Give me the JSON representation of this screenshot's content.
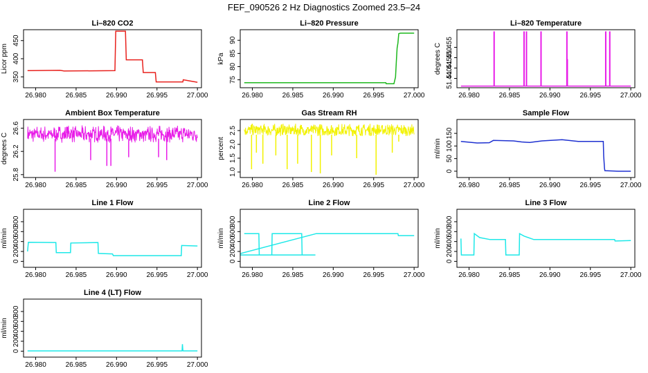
{
  "figure": {
    "title": "FEF_090526  2 Hz Diagnostics Zoomed 23.5–24"
  },
  "chart_data": [
    {
      "type": "line",
      "title": "Li–820 CO2",
      "ylabel": "Licor ppm",
      "xlim": [
        26.9785,
        27.0005
      ],
      "ylim": [
        320,
        480
      ],
      "xticks": [
        "26.980",
        "26.985",
        "26.990",
        "26.995",
        "27.000"
      ],
      "xtick_values": [
        26.98,
        26.985,
        26.99,
        26.995,
        27.0
      ],
      "yticks": [
        "350",
        "400",
        "450"
      ],
      "ytick_values": [
        350,
        400,
        450
      ],
      "color": "#e8201c",
      "series": [
        {
          "x": [
            26.979,
            26.983,
            26.9835,
            26.9898,
            26.9899,
            26.9911,
            26.9912,
            26.9932,
            26.9933,
            26.9948,
            26.9949,
            26.9982,
            26.99825,
            27.0
          ],
          "y": [
            367,
            368,
            366,
            367,
            476,
            476,
            397,
            397,
            362,
            362,
            336,
            336,
            342,
            335
          ]
        }
      ]
    },
    {
      "type": "line",
      "title": "Li–820 Pressure",
      "ylabel": "kPa",
      "xlim": [
        26.9785,
        27.0005
      ],
      "ylim": [
        72,
        94
      ],
      "xticks": [
        "26.980",
        "26.985",
        "26.990",
        "26.995",
        "27.000"
      ],
      "xtick_values": [
        26.98,
        26.985,
        26.99,
        26.995,
        27.0
      ],
      "yticks": [
        "75",
        "80",
        "85",
        "90"
      ],
      "ytick_values": [
        75,
        80,
        85,
        90
      ],
      "color": "#1cb71c",
      "series": [
        {
          "x": [
            26.979,
            26.9965,
            26.99655,
            26.9975,
            26.9977,
            26.9978,
            26.9979,
            26.998,
            26.9981,
            26.9983,
            27.0
          ],
          "y": [
            73.9,
            73.9,
            73.5,
            73.5,
            76,
            82,
            87,
            89,
            92.5,
            92.7,
            92.7
          ]
        }
      ]
    },
    {
      "type": "line",
      "title": "Li–820 Temperature",
      "ylabel": "degrees C",
      "xlim": [
        26.9785,
        27.0005
      ],
      "ylim": [
        51.4355,
        51.4635
      ],
      "xticks": [
        "26.980",
        "26.985",
        "26.990",
        "26.995",
        "27.000"
      ],
      "xtick_values": [
        26.98,
        26.985,
        26.99,
        26.995,
        27.0
      ],
      "yticks": [
        "51.440",
        "51.445",
        "51.450",
        "51.455"
      ],
      "ytick_values": [
        51.44,
        51.445,
        51.45,
        51.455
      ],
      "color": "#e81ce8",
      "baseline": 51.4363,
      "spikes": [
        {
          "x": 26.9831,
          "y": 51.4627
        },
        {
          "x": 26.9868,
          "y": 51.4627
        },
        {
          "x": 26.9871,
          "y": 51.4627
        },
        {
          "x": 26.9889,
          "y": 51.4627
        },
        {
          "x": 26.9921,
          "y": 51.4627
        },
        {
          "x": 26.99215,
          "y": 51.4493
        },
        {
          "x": 26.9969,
          "y": 51.4627
        },
        {
          "x": 26.9974,
          "y": 51.4627
        }
      ]
    },
    {
      "type": "line",
      "title": "Ambient Box Temperature",
      "ylabel": "degrees C",
      "xlim": [
        26.9785,
        27.0005
      ],
      "ylim": [
        25.75,
        26.75
      ],
      "xticks": [
        "26.980",
        "26.985",
        "26.990",
        "26.995",
        "27.000"
      ],
      "xtick_values": [
        26.98,
        26.985,
        26.99,
        26.995,
        27.0
      ],
      "yticks": [
        "25.8",
        "26.2",
        "26.6"
      ],
      "ytick_values": [
        25.8,
        26.2,
        26.6
      ],
      "color": "#e81ce8",
      "noise": {
        "x0": 26.979,
        "x1": 27.0,
        "low": 26.35,
        "high": 26.65,
        "band": [
          26.42,
          26.57
        ],
        "dips": [
          {
            "x": 26.9824,
            "y": 25.85
          },
          {
            "x": 26.9868,
            "y": 26.05
          },
          {
            "x": 26.9888,
            "y": 25.95
          },
          {
            "x": 26.9893,
            "y": 25.95
          },
          {
            "x": 26.9915,
            "y": 26.1
          },
          {
            "x": 26.9952,
            "y": 26.1
          },
          {
            "x": 26.9962,
            "y": 26.05
          }
        ]
      }
    },
    {
      "type": "line",
      "title": "Gas Stream RH",
      "ylabel": "percent",
      "xlim": [
        26.9785,
        27.0005
      ],
      "ylim": [
        0.8,
        2.9
      ],
      "xticks": [
        "26.980",
        "26.985",
        "26.990",
        "26.995",
        "27.000"
      ],
      "xtick_values": [
        26.98,
        26.985,
        26.99,
        26.995,
        27.0
      ],
      "yticks": [
        "1.0",
        "1.5",
        "2.0",
        "2.5"
      ],
      "ytick_values": [
        1.0,
        1.5,
        2.0,
        2.5
      ],
      "color": "#f2f200",
      "noise": {
        "x0": 26.979,
        "x1": 27.0,
        "low": 2.3,
        "high": 2.75,
        "band": [
          2.35,
          2.65
        ],
        "dips": [
          {
            "x": 26.9799,
            "y": 1.1
          },
          {
            "x": 26.9805,
            "y": 1.7
          },
          {
            "x": 26.9813,
            "y": 1.3
          },
          {
            "x": 26.9829,
            "y": 1.6
          },
          {
            "x": 26.9843,
            "y": 1.1
          },
          {
            "x": 26.9856,
            "y": 1.3
          },
          {
            "x": 26.9873,
            "y": 1.0
          },
          {
            "x": 26.9884,
            "y": 0.95
          },
          {
            "x": 26.9898,
            "y": 1.6
          },
          {
            "x": 26.9929,
            "y": 1.5
          },
          {
            "x": 26.9953,
            "y": 0.9
          },
          {
            "x": 26.9973,
            "y": 1.7
          },
          {
            "x": 26.9981,
            "y": 2.1
          }
        ]
      }
    },
    {
      "type": "line",
      "title": "Sample Flow",
      "ylabel": "ml/min",
      "xlim": [
        26.9785,
        27.0005
      ],
      "ylim": [
        -25,
        205
      ],
      "xticks": [
        "26.980",
        "26.985",
        "26.990",
        "26.995",
        "27.000"
      ],
      "xtick_values": [
        26.98,
        26.985,
        26.99,
        26.995,
        27.0
      ],
      "yticks": [
        "0",
        "50",
        "100",
        "150"
      ],
      "ytick_values": [
        0,
        50,
        100,
        150
      ],
      "color": "#1c2fd0",
      "series": [
        {
          "x": [
            26.979,
            26.981,
            26.9825,
            26.983,
            26.9855,
            26.9865,
            26.9875,
            26.989,
            26.9915,
            26.9935,
            26.9966,
            26.99665,
            26.99675,
            26.9968,
            26.9985,
            27.0
          ],
          "y": [
            118,
            112,
            113,
            122,
            120,
            116,
            114,
            120,
            125,
            118,
            118,
            60,
            10,
            2,
            0,
            0
          ]
        }
      ]
    },
    {
      "type": "line",
      "title": "Line 1 Flow",
      "ylabel": "ml/min",
      "xlim": [
        26.9785,
        27.0005
      ],
      "ylim": [
        -120,
        1050
      ],
      "xticks": [
        "26.980",
        "26.985",
        "26.990",
        "26.995",
        "27.000"
      ],
      "xtick_values": [
        26.98,
        26.985,
        26.99,
        26.995,
        27.0
      ],
      "yticks": [
        "0",
        "200",
        "400",
        "600",
        "800"
      ],
      "ytick_values": [
        0,
        200,
        400,
        600,
        800
      ],
      "color": "#1ce8e8",
      "series": [
        {
          "x": [
            26.979,
            26.9791,
            26.9825,
            26.98255,
            26.9843,
            26.98435,
            26.9877,
            26.98775,
            26.9895,
            26.9896,
            26.998,
            26.99805,
            27.0
          ],
          "y": [
            200,
            385,
            380,
            175,
            175,
            370,
            380,
            160,
            150,
            115,
            115,
            320,
            310
          ]
        }
      ]
    },
    {
      "type": "line",
      "title": "Line 2 Flow",
      "ylabel": "ml/min",
      "xlim": [
        26.9785,
        27.0005
      ],
      "ylim": [
        -120,
        1050
      ],
      "xticks": [
        "26.980",
        "26.985",
        "26.990",
        "26.995",
        "27.000"
      ],
      "xtick_values": [
        26.98,
        26.985,
        26.99,
        26.995,
        27.0
      ],
      "yticks": [
        "0",
        "200",
        "400",
        "600",
        "800"
      ],
      "ytick_values": [
        0,
        200,
        400,
        600,
        800
      ],
      "color": "#1ce8e8",
      "series": [
        {
          "x": [
            26.979,
            26.9808,
            26.98085,
            26.9824,
            26.98245,
            26.9861,
            26.98615,
            26.9878,
            26.97785,
            26.9879,
            26.998,
            26.99805,
            27.0
          ],
          "y": [
            560,
            560,
            130,
            130,
            560,
            560,
            130,
            130,
            130,
            560,
            560,
            520,
            520
          ]
        }
      ]
    },
    {
      "type": "line",
      "title": "Line 3 Flow",
      "ylabel": "ml/min",
      "xlim": [
        26.9785,
        27.0005
      ],
      "ylim": [
        -120,
        1050
      ],
      "xticks": [
        "26.980",
        "26.985",
        "26.990",
        "26.995",
        "27.000"
      ],
      "xtick_values": [
        26.98,
        26.985,
        26.99,
        26.995,
        27.0
      ],
      "yticks": [
        "0",
        "200",
        "400",
        "600",
        "800"
      ],
      "ytick_values": [
        0,
        200,
        400,
        600,
        800
      ],
      "color": "#1ce8e8",
      "series": [
        {
          "x": [
            26.979,
            26.97905,
            26.9791,
            26.9806,
            26.98065,
            26.9813,
            26.9826,
            26.9845,
            26.98455,
            26.9862,
            26.98625,
            26.9868,
            26.988,
            26.998,
            26.99805,
            27.0
          ],
          "y": [
            460,
            130,
            130,
            130,
            560,
            480,
            440,
            440,
            130,
            130,
            560,
            510,
            440,
            440,
            410,
            420
          ]
        }
      ]
    },
    {
      "type": "line",
      "title": "Line 4 (LT) Flow",
      "ylabel": "ml/min",
      "xlim": [
        26.9785,
        27.0005
      ],
      "ylim": [
        -120,
        1050
      ],
      "xticks": [
        "26.980",
        "26.985",
        "26.990",
        "26.995",
        "27.000"
      ],
      "xtick_values": [
        26.98,
        26.985,
        26.99,
        26.995,
        27.0
      ],
      "yticks": [
        "0",
        "200",
        "400",
        "600",
        "800"
      ],
      "ytick_values": [
        0,
        200,
        400,
        600,
        800
      ],
      "color": "#1ce8e8",
      "series": [
        {
          "x": [
            26.979,
            26.9981,
            26.99815,
            26.9982,
            26.99825,
            27.0
          ],
          "y": [
            5,
            5,
            140,
            20,
            5,
            5
          ]
        }
      ]
    }
  ]
}
